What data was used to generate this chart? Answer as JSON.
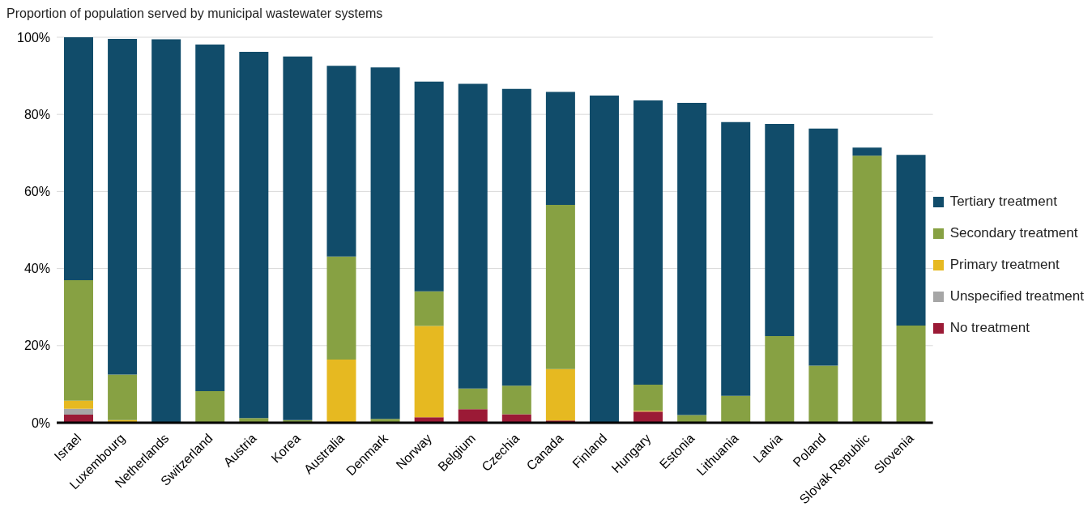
{
  "chart_data": {
    "type": "bar",
    "title": "Proportion of population served by municipal wastewater systems",
    "stacked": true,
    "grid": "y",
    "legend": "right",
    "categories": [
      "Israel",
      "Luxembourg",
      "Netherlands",
      "Switzerland",
      "Austria",
      "Korea",
      "Australia",
      "Denmark",
      "Norway",
      "Belgium",
      "Czechia",
      "Canada",
      "Finland",
      "Hungary",
      "Estonia",
      "Lithuania",
      "Latvia",
      "Poland",
      "Slovak Republic",
      "Slovenia"
    ],
    "ylim": [
      0,
      100
    ],
    "yticks": [
      {
        "value": 0,
        "label": "0%"
      },
      {
        "value": 20,
        "label": "20%"
      },
      {
        "value": 40,
        "label": "40%"
      },
      {
        "value": 60,
        "label": "60%"
      },
      {
        "value": 80,
        "label": "80%"
      },
      {
        "value": 100,
        "label": "100%"
      }
    ],
    "series": [
      {
        "name": "No treatment",
        "color": "#9b1a36",
        "values": [
          2.1,
          null,
          0,
          0,
          0,
          null,
          0,
          0,
          1.4,
          3.5,
          2.2,
          0.6,
          0,
          2.9,
          0,
          0,
          0,
          0,
          0,
          0
        ]
      },
      {
        "name": "Unspecified treatment",
        "color": "#a6a6a6",
        "values": [
          1.5,
          0,
          0,
          0,
          0,
          0,
          0,
          0,
          0,
          0,
          0,
          0,
          0,
          0,
          0,
          0,
          0,
          0,
          0,
          0
        ]
      },
      {
        "name": "Primary treatment",
        "color": "#e6b921",
        "values": [
          2.1,
          0.7,
          0,
          0,
          0,
          0,
          16.4,
          0,
          23.7,
          0,
          0,
          13.3,
          0,
          0.2,
          0,
          0,
          0.2,
          0,
          0.2,
          0
        ]
      },
      {
        "name": "Secondary treatment",
        "color": "#87a143",
        "values": [
          31.3,
          11.8,
          0,
          8.2,
          1.2,
          0.7,
          26.7,
          1,
          9,
          5.4,
          7.4,
          42.6,
          0,
          6.8,
          2,
          7,
          22.3,
          14.8,
          69.1,
          25.2
        ]
      },
      {
        "name": "Tertiary treatment",
        "color": "#114c6a",
        "values": [
          63,
          87.1,
          99.5,
          89.9,
          95,
          94.3,
          49.5,
          91.2,
          54.4,
          79,
          77,
          29.3,
          84.9,
          73.7,
          81,
          71,
          55,
          61.5,
          2.1,
          44.3
        ]
      }
    ]
  }
}
